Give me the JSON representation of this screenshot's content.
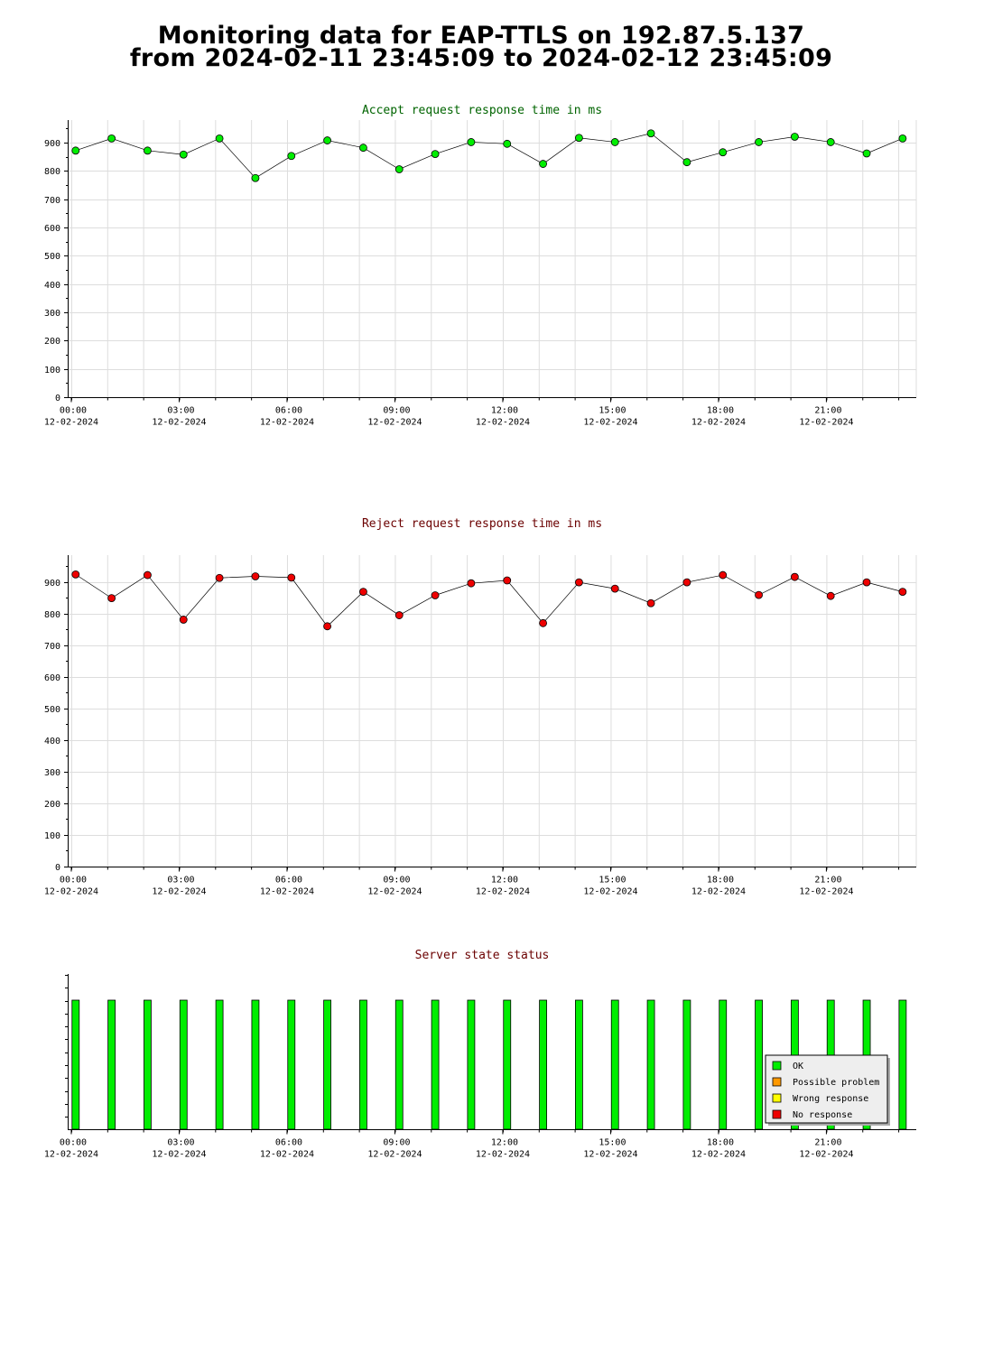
{
  "page": {
    "title_line_1": "Monitoring data for EAP-TTLS on 192.87.5.137",
    "title_line_2": "from 2024-02-11 23:45:09 to 2024-02-12 23:45:09"
  },
  "colors": {
    "accept_title": "#006400",
    "reject_title": "#6b0000",
    "status_title": "#6b0000",
    "accept_point": "#00ee00",
    "reject_point": "#ee0000",
    "ok": "#00ee00",
    "possible_problem": "#ff9900",
    "wrong_response": "#ffff00",
    "no_response": "#ee0000",
    "grid": "#dddddd"
  },
  "chart_data": [
    {
      "type": "line",
      "title": "Accept request response time in ms",
      "ylim": [
        0,
        980
      ],
      "yticks": [
        0,
        100,
        200,
        300,
        400,
        500,
        600,
        700,
        800,
        900
      ],
      "xlim": [
        -0.1,
        23.5
      ],
      "xticks": [
        {
          "x": 0,
          "time": "00:00",
          "date": "12-02-2024"
        },
        {
          "x": 3,
          "time": "03:00",
          "date": "12-02-2024"
        },
        {
          "x": 6,
          "time": "06:00",
          "date": "12-02-2024"
        },
        {
          "x": 9,
          "time": "09:00",
          "date": "12-02-2024"
        },
        {
          "x": 12,
          "time": "12:00",
          "date": "12-02-2024"
        },
        {
          "x": 15,
          "time": "15:00",
          "date": "12-02-2024"
        },
        {
          "x": 18,
          "time": "18:00",
          "date": "12-02-2024"
        },
        {
          "x": 21,
          "time": "21:00",
          "date": "12-02-2024"
        }
      ],
      "x": [
        0.02,
        1.02,
        2.02,
        3.02,
        4.02,
        5.02,
        6.02,
        7.02,
        8.02,
        9.02,
        10.02,
        11.02,
        12.02,
        13.02,
        14.02,
        15.02,
        16.02,
        17.02,
        18.02,
        19.02,
        20.02,
        21.02,
        22.02,
        23.02
      ],
      "values": [
        872,
        915,
        872,
        858,
        915,
        775,
        853,
        908,
        882,
        806,
        860,
        902,
        896,
        825,
        917,
        902,
        933,
        831,
        866,
        902,
        921,
        902,
        862,
        915
      ],
      "grid": true
    },
    {
      "type": "line",
      "title": "Reject request response time in ms",
      "ylim": [
        0,
        985
      ],
      "yticks": [
        0,
        100,
        200,
        300,
        400,
        500,
        600,
        700,
        800,
        900
      ],
      "xlim": [
        -0.1,
        23.5
      ],
      "xticks": [
        {
          "x": 0,
          "time": "00:00",
          "date": "12-02-2024"
        },
        {
          "x": 3,
          "time": "03:00",
          "date": "12-02-2024"
        },
        {
          "x": 6,
          "time": "06:00",
          "date": "12-02-2024"
        },
        {
          "x": 9,
          "time": "09:00",
          "date": "12-02-2024"
        },
        {
          "x": 12,
          "time": "12:00",
          "date": "12-02-2024"
        },
        {
          "x": 15,
          "time": "15:00",
          "date": "12-02-2024"
        },
        {
          "x": 18,
          "time": "18:00",
          "date": "12-02-2024"
        },
        {
          "x": 21,
          "time": "21:00",
          "date": "12-02-2024"
        }
      ],
      "x": [
        0.02,
        1.02,
        2.02,
        3.02,
        4.02,
        5.02,
        6.02,
        7.02,
        8.02,
        9.02,
        10.02,
        11.02,
        12.02,
        13.02,
        14.02,
        15.02,
        16.02,
        17.02,
        18.02,
        19.02,
        20.02,
        21.02,
        22.02,
        23.02
      ],
      "values": [
        924,
        849,
        922,
        781,
        913,
        918,
        914,
        760,
        869,
        795,
        858,
        896,
        905,
        770,
        899,
        879,
        833,
        899,
        922,
        859,
        916,
        856,
        899,
        869
      ],
      "grid": true
    },
    {
      "type": "bar",
      "title": "Server state status",
      "xlim": [
        -0.1,
        23.5
      ],
      "xticks": [
        {
          "x": 0,
          "time": "00:00",
          "date": "12-02-2024"
        },
        {
          "x": 3,
          "time": "03:00",
          "date": "12-02-2024"
        },
        {
          "x": 6,
          "time": "06:00",
          "date": "12-02-2024"
        },
        {
          "x": 9,
          "time": "09:00",
          "date": "12-02-2024"
        },
        {
          "x": 12,
          "time": "12:00",
          "date": "12-02-2024"
        },
        {
          "x": 15,
          "time": "15:00",
          "date": "12-02-2024"
        },
        {
          "x": 18,
          "time": "18:00",
          "date": "12-02-2024"
        },
        {
          "x": 21,
          "time": "21:00",
          "date": "12-02-2024"
        }
      ],
      "x": [
        0.02,
        1.02,
        2.02,
        3.02,
        4.02,
        5.02,
        6.02,
        7.02,
        8.02,
        9.02,
        10.02,
        11.02,
        12.02,
        13.02,
        14.02,
        15.02,
        16.02,
        17.02,
        18.02,
        19.02,
        20.02,
        21.02,
        22.02,
        23.02
      ],
      "states": [
        "OK",
        "OK",
        "OK",
        "OK",
        "OK",
        "OK",
        "OK",
        "OK",
        "OK",
        "OK",
        "OK",
        "OK",
        "OK",
        "OK",
        "OK",
        "OK",
        "OK",
        "OK",
        "OK",
        "OK",
        "OK",
        "OK",
        "OK",
        "OK"
      ],
      "legend": [
        "OK",
        "Possible problem",
        "Wrong response",
        "No response"
      ],
      "legend_placement": "bottom-right"
    }
  ]
}
